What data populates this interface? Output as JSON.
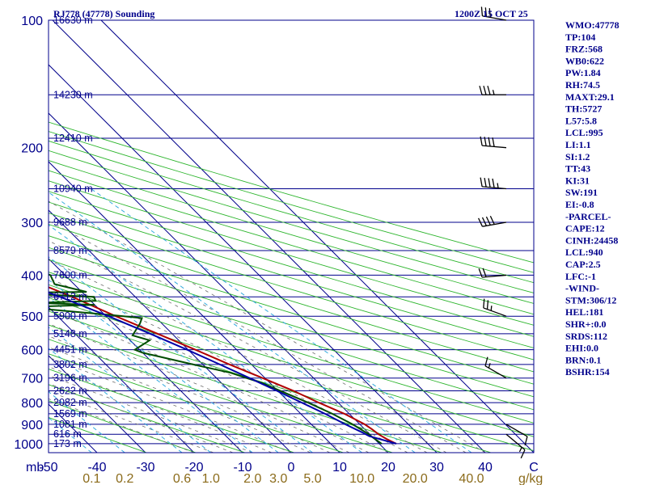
{
  "chart_data": {
    "type": "line",
    "title": "RJ778 (47778) Sounding",
    "valid_time": "1200Z 15 OCT 25",
    "xlabel_prefix": "mb",
    "mixing_ratio_unit": "g/kg",
    "pressure_ticks": [
      {
        "p": 100,
        "label": "100"
      },
      {
        "p": 200,
        "label": "200"
      },
      {
        "p": 300,
        "label": "300"
      },
      {
        "p": 400,
        "label": "400"
      },
      {
        "p": 500,
        "label": "500"
      },
      {
        "p": 600,
        "label": "600"
      },
      {
        "p": 700,
        "label": "700"
      },
      {
        "p": 800,
        "label": "800"
      },
      {
        "p": 900,
        "label": "900"
      },
      {
        "p": 1000,
        "label": "1000"
      }
    ],
    "height_levels": [
      {
        "p": 100,
        "label": "16630 m"
      },
      {
        "p": 150,
        "label": "14230 m"
      },
      {
        "p": 190,
        "label": "12410 m"
      },
      {
        "p": 250,
        "label": "10940 m"
      },
      {
        "p": 300,
        "label": "9688 m"
      },
      {
        "p": 350,
        "label": "8579 m"
      },
      {
        "p": 400,
        "label": "7600 m"
      },
      {
        "p": 450,
        "label": "6712 m"
      },
      {
        "p": 500,
        "label": "5900 m"
      },
      {
        "p": 550,
        "label": "5148 m"
      },
      {
        "p": 600,
        "label": "4451 m"
      },
      {
        "p": 650,
        "label": "3802 m"
      },
      {
        "p": 700,
        "label": "3196 m"
      },
      {
        "p": 750,
        "label": "2622 m"
      },
      {
        "p": 800,
        "label": "2082 m"
      },
      {
        "p": 850,
        "label": "1569 m"
      },
      {
        "p": 900,
        "label": "1081 m"
      },
      {
        "p": 950,
        "label": "616 m"
      },
      {
        "p": 1000,
        "label": "173 m"
      }
    ],
    "temperature_ticks": [
      {
        "t": -50,
        "label": "-50"
      },
      {
        "t": -40,
        "label": "-40"
      },
      {
        "t": -30,
        "label": "-30"
      },
      {
        "t": -20,
        "label": "-20"
      },
      {
        "t": -10,
        "label": "-10"
      },
      {
        "t": 0,
        "label": "0"
      },
      {
        "t": 10,
        "label": "10"
      },
      {
        "t": 20,
        "label": "20"
      },
      {
        "t": 30,
        "label": "30"
      },
      {
        "t": 40,
        "label": "40"
      },
      {
        "t": 50,
        "label": "C"
      }
    ],
    "mixing_ratio_ticks": [
      {
        "w": 0.1,
        "label": "0.1"
      },
      {
        "w": 0.2,
        "label": "0.2"
      },
      {
        "w": 0.6,
        "label": "0.6"
      },
      {
        "w": 1.0,
        "label": "1.0"
      },
      {
        "w": 2.0,
        "label": "2.0"
      },
      {
        "w": 3.0,
        "label": "3.0"
      },
      {
        "w": 5.0,
        "label": "5.0"
      },
      {
        "w": 10.0,
        "label": "10.0"
      },
      {
        "w": 20.0,
        "label": "20.0"
      },
      {
        "w": 40.0,
        "label": "40.0"
      }
    ],
    "series": [
      {
        "name": "Temperature",
        "color": "#b00000",
        "points": [
          [
            1000,
            23.5
          ],
          [
            975,
            22.5
          ],
          [
            950,
            21.8
          ],
          [
            925,
            21.5
          ],
          [
            900,
            21.0
          ],
          [
            850,
            19.0
          ],
          [
            800,
            16.0
          ],
          [
            750,
            13.2
          ],
          [
            700,
            9.5
          ],
          [
            650,
            5.5
          ],
          [
            600,
            1.5
          ],
          [
            550,
            -3.0
          ],
          [
            500,
            -8.0
          ],
          [
            450,
            -13.0
          ],
          [
            400,
            -19.5
          ],
          [
            350,
            -26.5
          ],
          [
            320,
            -31.0
          ],
          [
            300,
            -35.0
          ],
          [
            280,
            -39.0
          ],
          [
            250,
            -44.0
          ],
          [
            200,
            -54.0
          ],
          [
            170,
            -60.0
          ],
          [
            150,
            -66.0
          ],
          [
            130,
            -70.0
          ],
          [
            115,
            -72.0
          ],
          [
            100,
            -74.0
          ]
        ]
      },
      {
        "name": "Dewpoint",
        "color": "#004d00",
        "points": [
          [
            1000,
            20.5
          ],
          [
            970,
            20.0
          ],
          [
            950,
            19.8
          ],
          [
            900,
            18.5
          ],
          [
            850,
            16.5
          ],
          [
            800,
            13.8
          ],
          [
            750,
            10.5
          ],
          [
            720,
            8.5
          ],
          [
            700,
            6.2
          ],
          [
            680,
            4.0
          ],
          [
            650,
            -2.0
          ],
          [
            610,
            -10.0
          ],
          [
            600,
            -11.0
          ],
          [
            570,
            -6.0
          ],
          [
            555,
            -8.5
          ],
          [
            520,
            -4.5
          ],
          [
            505,
            -3.0
          ],
          [
            495,
            -10.0
          ],
          [
            480,
            -22.0
          ],
          [
            475,
            -23.0
          ],
          [
            470,
            -10.0
          ],
          [
            465,
            -22.0
          ],
          [
            460,
            -9.0
          ],
          [
            450,
            -8.5
          ],
          [
            440,
            -26.0
          ],
          [
            438,
            -9.0
          ],
          [
            420,
            -14.0
          ],
          [
            400,
            -13.0
          ],
          [
            380,
            -16.0
          ],
          [
            360,
            -22.0
          ],
          [
            340,
            -25.0
          ],
          [
            330,
            -40.0
          ],
          [
            320,
            -34.0
          ],
          [
            315,
            -48.0
          ],
          [
            305,
            -40.0
          ],
          [
            300,
            -38.0
          ],
          [
            295,
            -50.0
          ],
          [
            290,
            -51.0
          ],
          [
            280,
            -56.0
          ],
          [
            260,
            -61.0
          ]
        ]
      },
      {
        "name": "Parcel",
        "color": "#0000a8",
        "points": [
          [
            1000,
            23.5
          ],
          [
            960,
            19.5
          ],
          [
            940,
            18.8
          ],
          [
            900,
            17.0
          ],
          [
            850,
            15.0
          ],
          [
            800,
            12.5
          ],
          [
            750,
            9.8
          ],
          [
            700,
            6.8
          ],
          [
            650,
            3.5
          ],
          [
            600,
            -0.2
          ],
          [
            550,
            -4.5
          ],
          [
            500,
            -9.5
          ],
          [
            450,
            -15.5
          ],
          [
            400,
            -23.0
          ],
          [
            350,
            -32.0
          ],
          [
            300,
            -43.0
          ],
          [
            250,
            -55.0
          ],
          [
            200,
            -68.0
          ],
          [
            150,
            -82.0
          ],
          [
            120,
            -92.0
          ]
        ]
      }
    ],
    "wind_barbs": [
      {
        "p": 100,
        "dir": 280,
        "spd": 30
      },
      {
        "p": 150,
        "dir": 270,
        "spd": 35
      },
      {
        "p": 200,
        "dir": 275,
        "spd": 40
      },
      {
        "p": 250,
        "dir": 275,
        "spd": 45
      },
      {
        "p": 300,
        "dir": 260,
        "spd": 40
      },
      {
        "p": 400,
        "dir": 265,
        "spd": 20
      },
      {
        "p": 500,
        "dir": 290,
        "spd": 25
      },
      {
        "p": 700,
        "dir": 300,
        "spd": 15
      },
      {
        "p": 900,
        "dir": 120,
        "spd": 10
      },
      {
        "p": 950,
        "dir": 130,
        "spd": 15
      }
    ],
    "indices": [
      "WMO:47778",
      "TP:104",
      "FRZ:568",
      "WB0:622",
      "PW:1.84",
      "RH:74.5",
      "MAXT:29.1",
      "TH:5727",
      "L57:5.8",
      "LCL:995",
      "LI:1.1",
      "SI:1.2",
      "TT:43",
      "KI:31",
      "SW:191",
      "EI:-0.8",
      "-PARCEL-",
      "CAPE:12",
      "CINH:24458",
      "LCL:940",
      "CAP:2.5",
      "LFC:-1",
      "-WIND-",
      "STM:306/12",
      "HEL:181",
      "SHR+:0.0",
      "SRDS:112",
      "EHI:0.0",
      "BRN:0.1",
      "BSHR:154"
    ]
  }
}
